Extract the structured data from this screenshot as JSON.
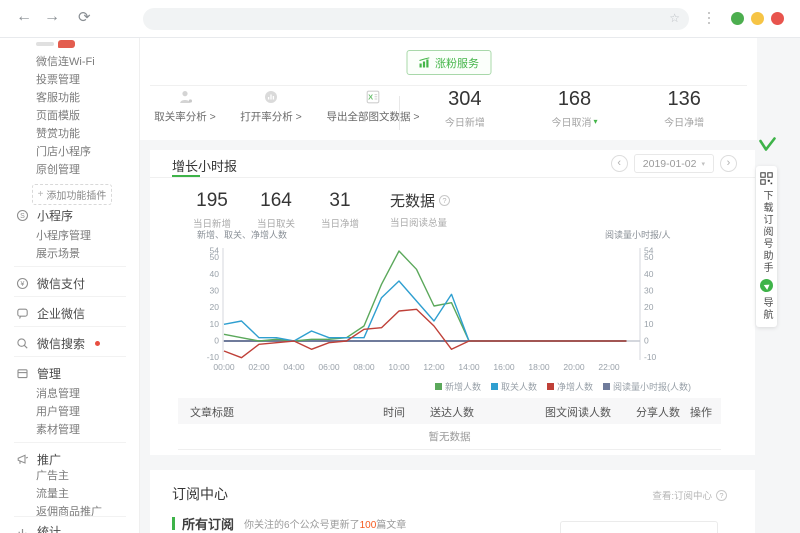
{
  "browser": {
    "back_icon": "←",
    "forward_icon": "→",
    "refresh_icon": "⟳",
    "star_icon": "☆",
    "omnibox_value": "",
    "window_dot_colors": [
      "#4cae4f",
      "#f6c445",
      "#e8544d"
    ]
  },
  "sidebar": {
    "plugin_items": [
      "微信连Wi-Fi",
      "投票管理",
      "客服功能",
      "页面模版",
      "赞赏功能",
      "门店小程序",
      "原创管理"
    ],
    "add_plugin_label": "添加功能插件",
    "sections": [
      {
        "label": "小程序",
        "icon": "mini-program-icon",
        "children": [
          "小程序管理",
          "展示场景"
        ]
      },
      {
        "label": "微信支付",
        "icon": "wechat-pay-icon",
        "children": []
      },
      {
        "label": "企业微信",
        "icon": "enterprise-wechat-icon",
        "children": []
      },
      {
        "label": "微信搜索",
        "icon": "wechat-search-icon",
        "badge_dot": true,
        "children": []
      },
      {
        "label": "管理",
        "icon": "management-icon",
        "children": [
          "消息管理",
          "用户管理",
          "素材管理"
        ]
      },
      {
        "label": "推广",
        "icon": "promotion-icon",
        "children": [
          "广告主",
          "流量主",
          "返佣商品推广"
        ]
      },
      {
        "label": "统计",
        "icon": "statistics-icon",
        "children": []
      }
    ]
  },
  "overview": {
    "report_button_label": "涨粉服务",
    "actions": [
      {
        "label": "取关率分析 >",
        "icon": "unfollow-analysis-icon"
      },
      {
        "label": "打开率分析 >",
        "icon": "open-rate-analysis-icon"
      },
      {
        "label": "导出全部图文数据 >",
        "icon": "export-excel-icon"
      }
    ],
    "stats": [
      {
        "value": "304",
        "label": "今日新增"
      },
      {
        "value": "168",
        "label": "今日取消",
        "dropdown": true
      },
      {
        "value": "136",
        "label": "今日净增"
      }
    ]
  },
  "growth": {
    "tab_label": "增长小时报",
    "date": "2019-01-02",
    "prev_icon": "‹",
    "next_icon": "›",
    "caret_icon": "▾",
    "stats": [
      {
        "value": "195",
        "label": "当日新增"
      },
      {
        "value": "164",
        "label": "当日取关"
      },
      {
        "value": "31",
        "label": "当日净增"
      },
      {
        "value": "无数据",
        "label": "当日阅读总量",
        "help": true
      }
    ]
  },
  "chart_data": {
    "type": "line",
    "x": [
      "00:00",
      "01:00",
      "02:00",
      "03:00",
      "04:00",
      "05:00",
      "06:00",
      "07:00",
      "08:00",
      "09:00",
      "10:00",
      "11:00",
      "12:00",
      "13:00",
      "14:00",
      "15:00",
      "16:00",
      "17:00",
      "18:00",
      "19:00",
      "20:00",
      "21:00",
      "22:00",
      "23:00"
    ],
    "x_tick_labels": [
      "00:00",
      "02:00",
      "04:00",
      "06:00",
      "08:00",
      "10:00",
      "12:00",
      "14:00",
      "16:00",
      "18:00",
      "20:00",
      "22:00"
    ],
    "left_axis_label": "新增、取关、净增人数",
    "right_axis_label": "阅读量小时报/人",
    "y_ticks": [
      54,
      50,
      40,
      30,
      20,
      10,
      0,
      -10
    ],
    "ylim": [
      -10,
      54
    ],
    "grid": false,
    "legend_position": "bottom-right",
    "series": [
      {
        "name": "新增人数",
        "color": "#5ba85b",
        "values": [
          4,
          2,
          0,
          1,
          0,
          1,
          1,
          2,
          9,
          34,
          54,
          43,
          21,
          23,
          0,
          0,
          0,
          0,
          0,
          0,
          0,
          0,
          0,
          0
        ]
      },
      {
        "name": "取关人数",
        "color": "#2f9fd0",
        "values": [
          10,
          12,
          2,
          2,
          0,
          6,
          2,
          2,
          2,
          26,
          36,
          24,
          12,
          28,
          0,
          0,
          0,
          0,
          0,
          0,
          0,
          0,
          0,
          0
        ]
      },
      {
        "name": "净增人数",
        "color": "#bf4038",
        "values": [
          -6,
          -10,
          -2,
          -1,
          0,
          -5,
          -1,
          0,
          7,
          8,
          18,
          19,
          9,
          -5,
          0,
          0,
          0,
          0,
          0,
          0,
          0,
          0,
          0,
          0
        ]
      },
      {
        "name": "阅读量小时报(人数)",
        "color": "#6f7b9b",
        "values": [
          0,
          0,
          0,
          0,
          0,
          0,
          0,
          0,
          0,
          0,
          0,
          0,
          0,
          0,
          0,
          0,
          0,
          0,
          0,
          0,
          0,
          0,
          0,
          0
        ]
      }
    ]
  },
  "table": {
    "headers": [
      "文章标题",
      "时间",
      "送达人数",
      "图文阅读人数",
      "分享人数",
      "操作"
    ],
    "empty_text": "暂无数据"
  },
  "subscription": {
    "title": "订阅中心",
    "view_link": "查看:订阅中心",
    "section_label": "所有订阅",
    "desc_prefix": "你关注的6个公众号更新了",
    "desc_highlight": "100",
    "desc_suffix": "篇文章",
    "highlight_color": "#f55a1e"
  },
  "floating": {
    "download_label": "下载订阅号助手",
    "nav_label": "导航"
  },
  "theme": {
    "accent_green": "#3eb349",
    "bg": "#f5f6f7",
    "danger_red": "#e8544d"
  }
}
